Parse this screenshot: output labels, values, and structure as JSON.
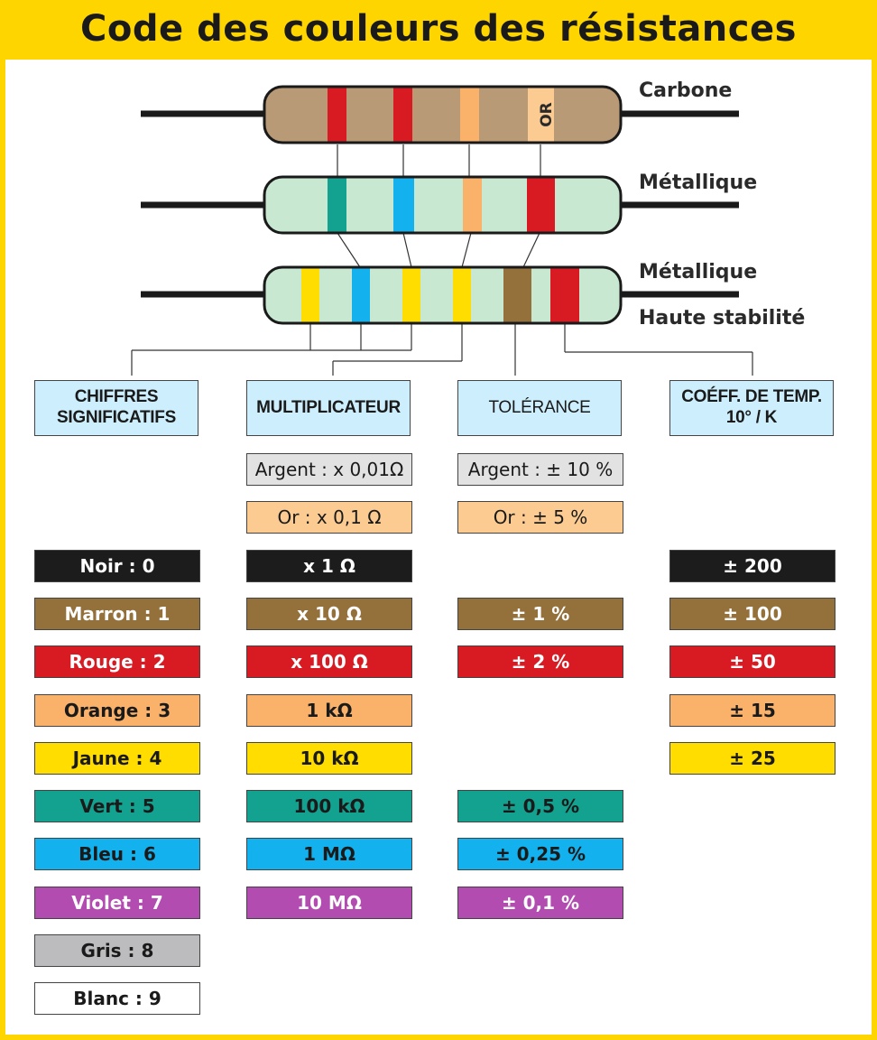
{
  "title": "Code des couleurs des résistances",
  "colors": {
    "frame": "#ffd500",
    "header_bg": "#cdeefc",
    "carbon_body": "#b99a77",
    "metal_body": "#c9e8d2",
    "noir": "#1c1c1c",
    "marron": "#94703a",
    "rouge": "#d81b22",
    "orange": "#fab26a",
    "jaune": "#ffdd00",
    "vert": "#13a190",
    "bleu": "#13b2ee",
    "violet": "#b24cb1",
    "gris": "#bcbcbe",
    "blanc": "#ffffff",
    "argent": "#e2e2e3",
    "or": "#fbcb92"
  },
  "resistors": {
    "carbone": {
      "label": "Carbone",
      "or_band_text": "OR"
    },
    "metallique": {
      "label": "Métallique"
    },
    "haute_stabilite": {
      "label_line1": "Métallique",
      "label_line2": "Haute stabilité"
    }
  },
  "headers": {
    "chiffres": "CHIFFRES\nSIGNIFICATIFS",
    "multiplicateur": "MULTIPLICATEUR",
    "tolerance": "TOLÉRANCE",
    "coeff": "COÉFF. DE TEMP.\n10° / K"
  },
  "chiffres": [
    {
      "text": "Noir : 0",
      "color": "noir",
      "text_color": "#ffffff"
    },
    {
      "text": "Marron : 1",
      "color": "marron",
      "text_color": "#ffffff"
    },
    {
      "text": "Rouge : 2",
      "color": "rouge",
      "text_color": "#ffffff"
    },
    {
      "text": "Orange : 3",
      "color": "orange",
      "text_color": "#1a1a1a"
    },
    {
      "text": "Jaune : 4",
      "color": "jaune",
      "text_color": "#1a1a1a"
    },
    {
      "text": "Vert : 5",
      "color": "vert",
      "text_color": "#1a1a1a"
    },
    {
      "text": "Bleu : 6",
      "color": "bleu",
      "text_color": "#1a1a1a"
    },
    {
      "text": "Violet : 7",
      "color": "violet",
      "text_color": "#ffffff"
    },
    {
      "text": "Gris : 8",
      "color": "gris",
      "text_color": "#1a1a1a"
    },
    {
      "text": "Blanc : 9",
      "color": "blanc",
      "text_color": "#1a1a1a"
    }
  ],
  "multiplicateur": [
    {
      "text": "Argent : x 0,01Ω",
      "color": "argent",
      "text_color": "#1a1a1a"
    },
    {
      "text": "Or : x 0,1 Ω",
      "color": "or",
      "text_color": "#1a1a1a"
    },
    {
      "text": "x 1 Ω",
      "color": "noir",
      "text_color": "#ffffff"
    },
    {
      "text": "x 10 Ω",
      "color": "marron",
      "text_color": "#ffffff"
    },
    {
      "text": "x 100 Ω",
      "color": "rouge",
      "text_color": "#ffffff"
    },
    {
      "text": "1 kΩ",
      "color": "orange",
      "text_color": "#1a1a1a"
    },
    {
      "text": "10 kΩ",
      "color": "jaune",
      "text_color": "#1a1a1a"
    },
    {
      "text": "100 kΩ",
      "color": "vert",
      "text_color": "#1a1a1a"
    },
    {
      "text": "1 MΩ",
      "color": "bleu",
      "text_color": "#1a1a1a"
    },
    {
      "text": "10 MΩ",
      "color": "violet",
      "text_color": "#ffffff"
    }
  ],
  "tolerance": [
    {
      "text": "Argent : ± 10 %",
      "color": "argent",
      "text_color": "#1a1a1a"
    },
    {
      "text": "Or : ± 5 %",
      "color": "or",
      "text_color": "#1a1a1a"
    },
    {
      "text": "± 1 %",
      "color": "marron",
      "text_color": "#ffffff"
    },
    {
      "text": "± 2 %",
      "color": "rouge",
      "text_color": "#ffffff"
    },
    {
      "text": "± 0,5 %",
      "color": "vert",
      "text_color": "#1a1a1a"
    },
    {
      "text": "± 0,25 %",
      "color": "bleu",
      "text_color": "#1a1a1a"
    },
    {
      "text": "± 0,1 %",
      "color": "violet",
      "text_color": "#ffffff"
    }
  ],
  "coeff": [
    {
      "text": "± 200",
      "color": "noir",
      "text_color": "#ffffff"
    },
    {
      "text": "± 100",
      "color": "marron",
      "text_color": "#ffffff"
    },
    {
      "text": "± 50",
      "color": "rouge",
      "text_color": "#ffffff"
    },
    {
      "text": "± 15",
      "color": "orange",
      "text_color": "#1a1a1a"
    },
    {
      "text": "± 25",
      "color": "jaune",
      "text_color": "#1a1a1a"
    }
  ]
}
